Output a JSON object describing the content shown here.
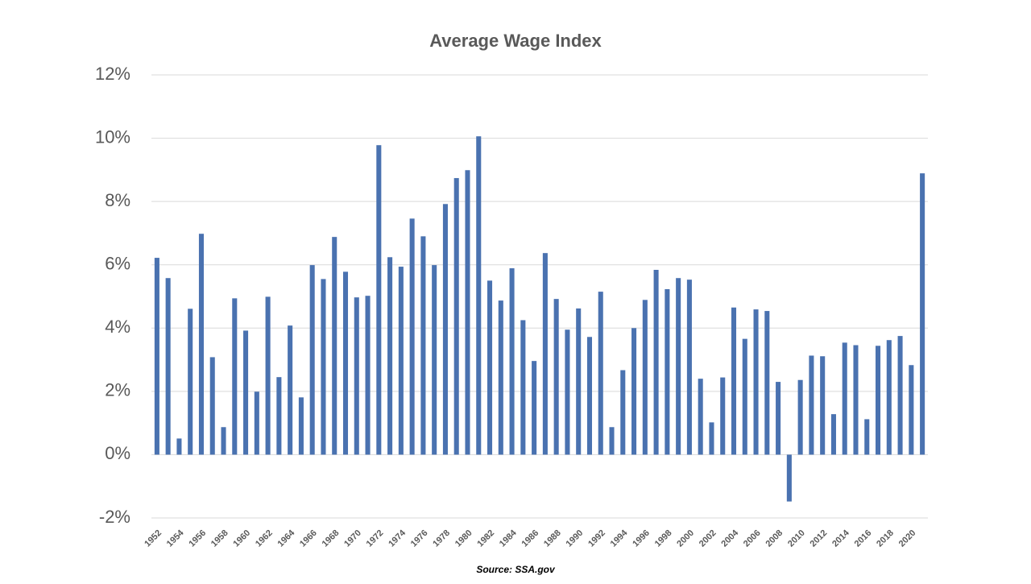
{
  "chart_data": {
    "type": "bar",
    "title": "Average Wage Index",
    "source": "Source: SSA.gov",
    "categories": [
      "1952",
      null,
      "1954",
      null,
      "1956",
      null,
      "1958",
      null,
      "1960",
      null,
      "1962",
      null,
      "1964",
      null,
      "1966",
      null,
      "1968",
      null,
      "1970",
      null,
      "1972",
      null,
      "1974",
      null,
      "1976",
      null,
      "1978",
      null,
      "1980",
      null,
      "1982",
      null,
      "1984",
      null,
      "1986",
      null,
      "1988",
      null,
      "1990",
      null,
      "1992",
      null,
      "1994",
      null,
      "1996",
      null,
      "1998",
      null,
      "2000",
      null,
      "2002",
      null,
      "2004",
      null,
      "2006",
      null,
      "2008",
      null,
      "2010",
      null,
      "2012",
      null,
      "2014",
      null,
      "2016",
      null,
      "2018",
      null,
      "2020",
      null
    ],
    "values": [
      6.22,
      5.58,
      0.51,
      4.61,
      6.98,
      3.08,
      0.87,
      4.94,
      3.92,
      1.99,
      4.99,
      2.45,
      4.08,
      1.81,
      5.99,
      5.55,
      6.88,
      5.78,
      4.97,
      5.02,
      9.78,
      6.24,
      5.94,
      7.46,
      6.9,
      5.99,
      7.92,
      8.74,
      8.99,
      10.06,
      5.5,
      4.87,
      5.89,
      4.25,
      2.96,
      6.37,
      4.92,
      3.95,
      4.62,
      3.72,
      5.15,
      0.87,
      2.67,
      4.0,
      4.89,
      5.84,
      5.23,
      5.58,
      5.53,
      2.4,
      1.02,
      2.44,
      4.65,
      3.66,
      4.59,
      4.54,
      2.3,
      -1.48,
      2.36,
      3.13,
      3.11,
      1.28,
      3.54,
      3.46,
      1.12,
      3.44,
      3.62,
      3.75,
      2.83,
      8.89
    ],
    "color": "#4a72b0",
    "ylim": [
      -2,
      12
    ],
    "yticks": [
      {
        "value": -2,
        "label": "-2%"
      },
      {
        "value": 0,
        "label": "0%"
      },
      {
        "value": 2,
        "label": "2%"
      },
      {
        "value": 4,
        "label": "4%"
      },
      {
        "value": 6,
        "label": "6%"
      },
      {
        "value": 8,
        "label": "8%"
      },
      {
        "value": 10,
        "label": "10%"
      },
      {
        "value": 12,
        "label": "12%"
      }
    ],
    "grid": true
  }
}
